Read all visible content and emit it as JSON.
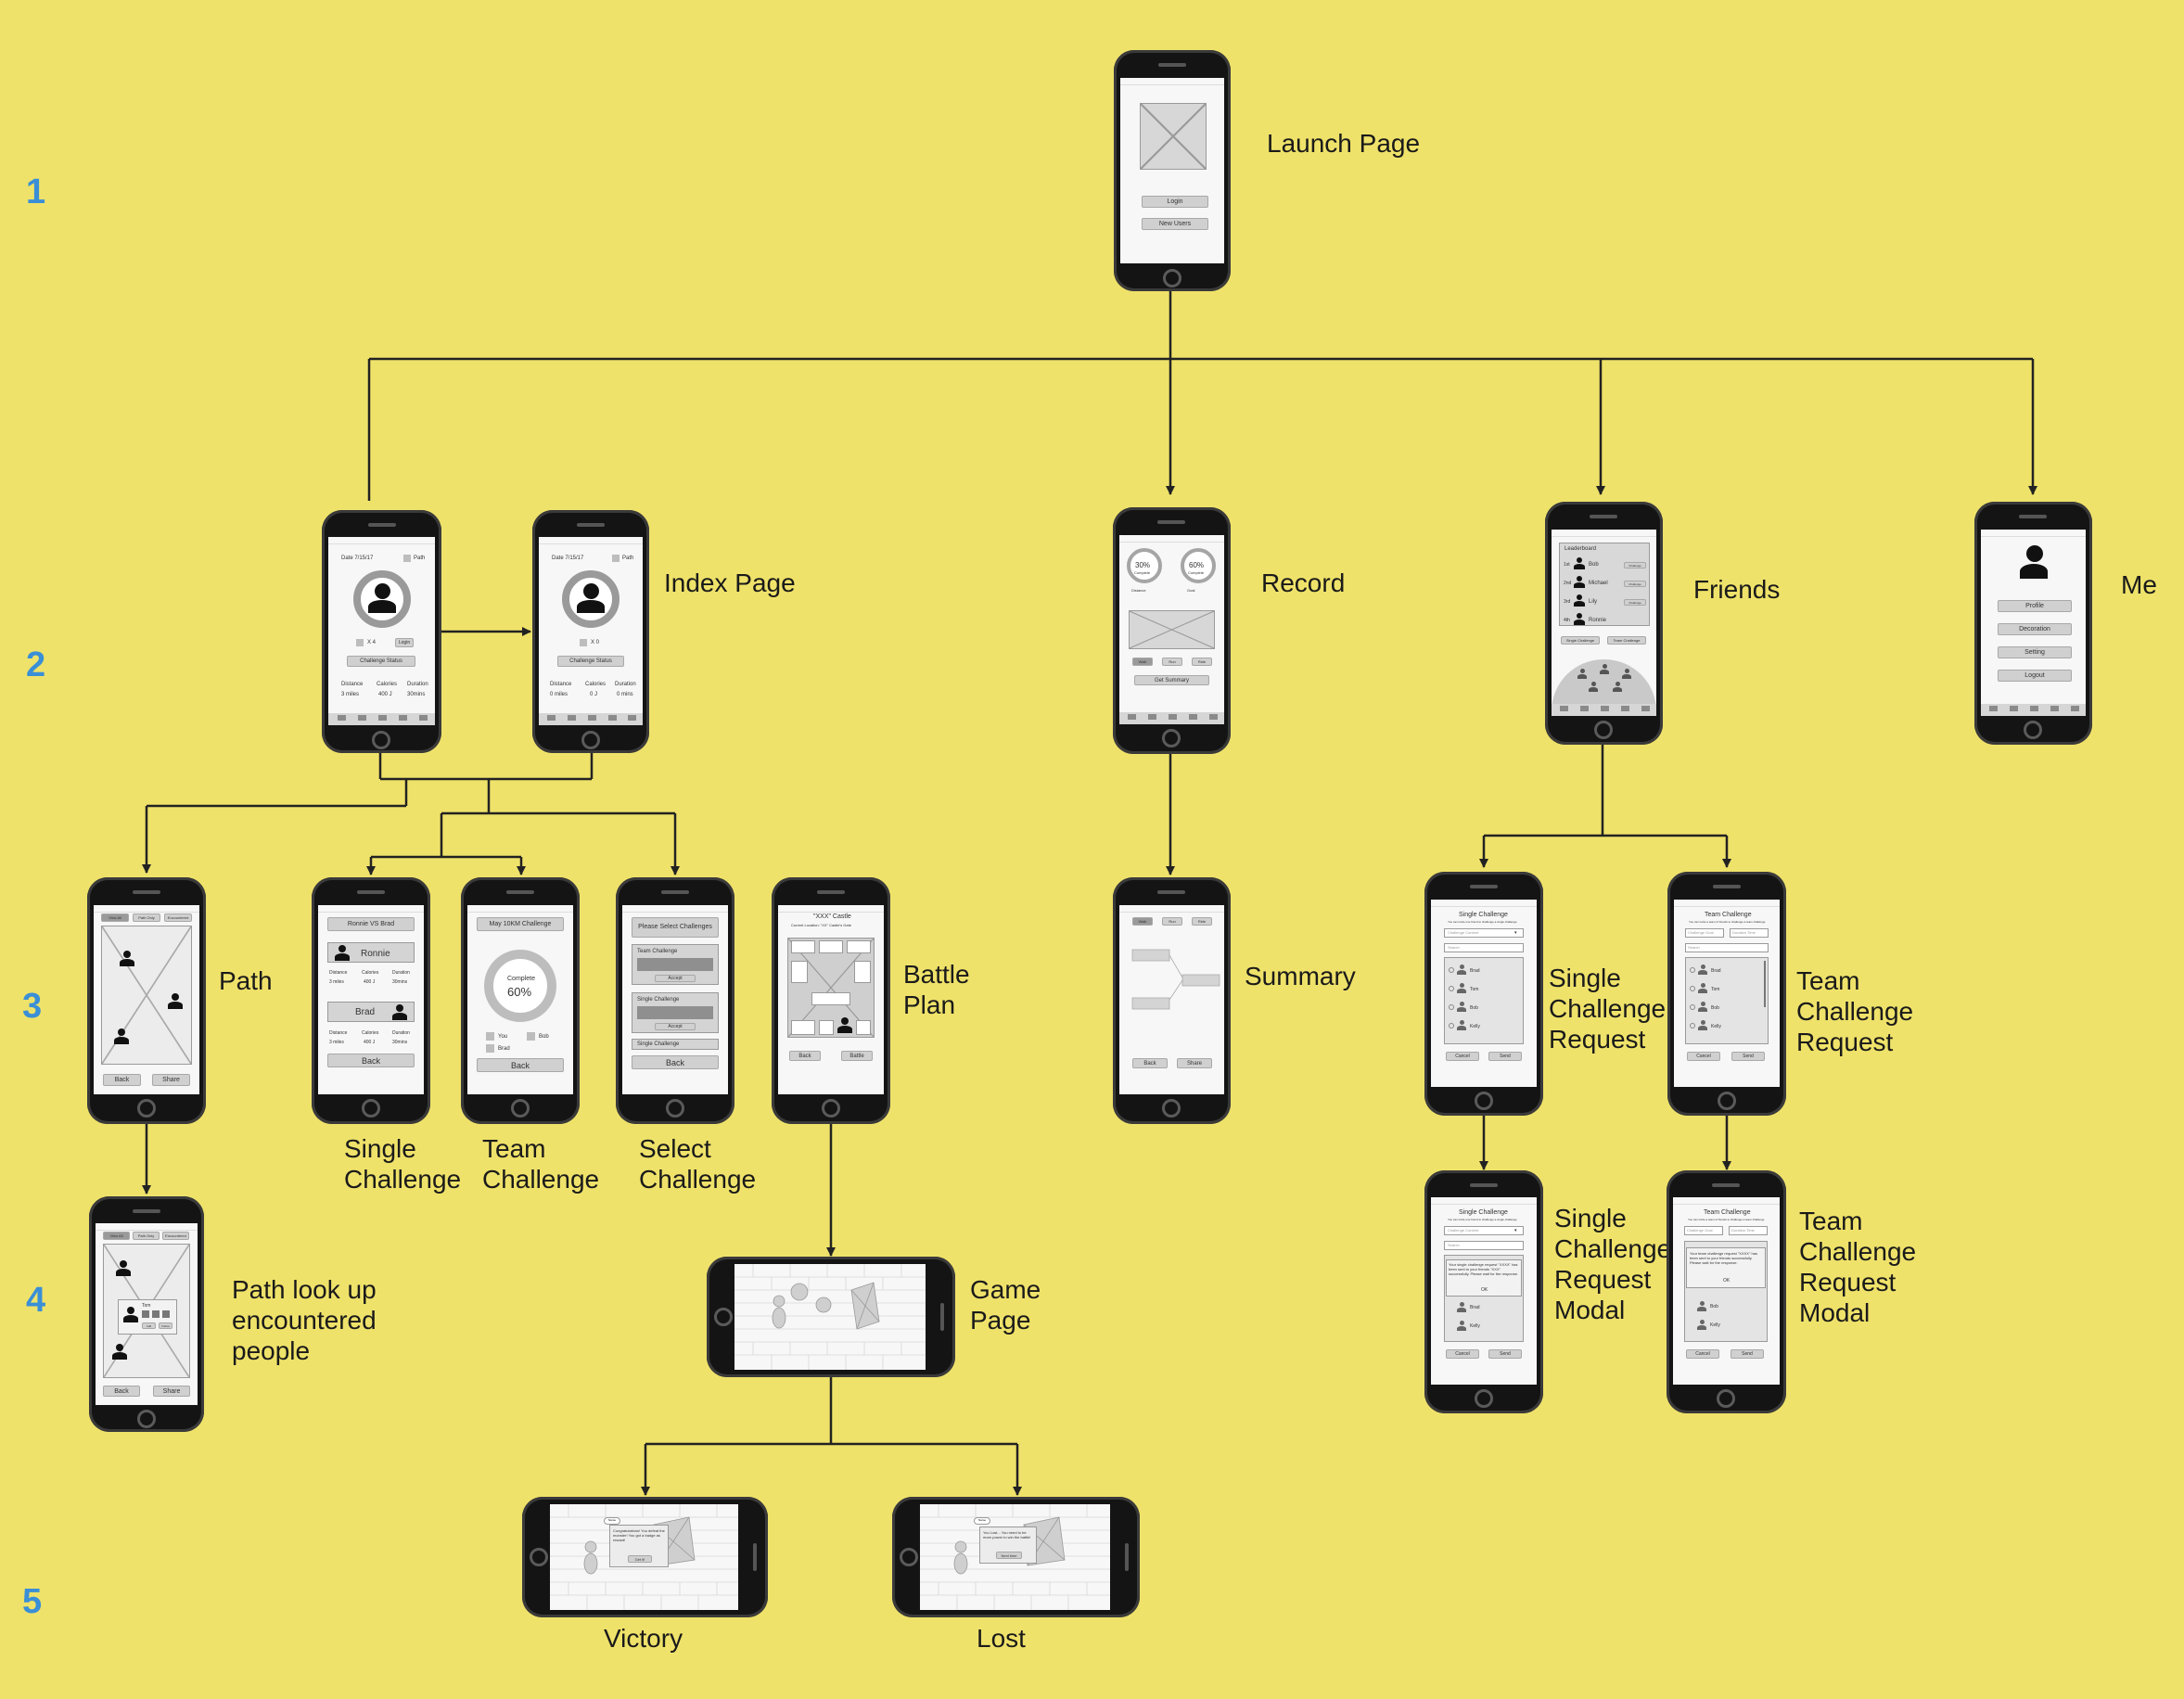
{
  "title": "",
  "row_numbers": [
    "1",
    "2",
    "3",
    "4",
    "5"
  ],
  "screens": {
    "launch": {
      "label": "Launch Page",
      "buttons": [
        "Login",
        "New Users"
      ]
    },
    "index": {
      "label": "Index Page",
      "date1": "Date 7/15/17",
      "date2": "Date 7/15/17",
      "path": "Path",
      "times1": "X 4",
      "times2": "X 0",
      "login": "Login",
      "challenge_status": "Challenge Status",
      "stat_labels": [
        "Distance",
        "Calories",
        "Duration"
      ],
      "stats1": [
        "3 miles",
        "400 J",
        "30mins"
      ],
      "stats2": [
        "0 miles",
        "0 J",
        "0 mins"
      ],
      "tabs": [
        "Index",
        "Record",
        "Friends",
        "Analysis",
        "Me"
      ]
    },
    "record": {
      "label": "Record",
      "goal1": "30%",
      "goal1_sub": "Complete",
      "goal2": "60%",
      "goal2_sub": "Complete",
      "captions": [
        "Distance",
        "Goal"
      ],
      "buttons": [
        "Walk",
        "Run",
        "Ride"
      ],
      "get_summary": "Get Summary"
    },
    "friends": {
      "label": "Friends",
      "leaderboard": "Leaderboard",
      "ranks": [
        "1st",
        "2nd",
        "3rd",
        "4th"
      ],
      "names": [
        "Bob",
        "Michael",
        "Lily",
        "Ronnie"
      ],
      "challenge": "Challenge",
      "buttons": [
        "Single Challenge",
        "Team Challenge"
      ]
    },
    "me": {
      "label": "Me",
      "buttons": [
        "Profile",
        "Decoration",
        "Setting",
        "Logout"
      ]
    },
    "path": {
      "label": "Path",
      "tabs": [
        "View All",
        "Path Only",
        "Encountered"
      ],
      "buttons": [
        "Back",
        "Share"
      ]
    },
    "single_challenge": {
      "label_lines": [
        "Single",
        "Challenge"
      ],
      "title": "Ronnie VS Brad",
      "p1": "Ronnie",
      "p2": "Brad",
      "stat_labels": [
        "Distance",
        "Calories",
        "Duration"
      ],
      "stats1": [
        "3 miles",
        "400 J",
        "30mins"
      ],
      "stats2": [
        "3 miles",
        "400 J",
        "30mins"
      ],
      "back": "Back"
    },
    "team_challenge": {
      "label_lines": [
        "Team",
        "Challenge"
      ],
      "title": "May 10KM Challenge",
      "complete": "Complete",
      "percent": "60%",
      "legend": [
        "You",
        "Bob",
        "Brad"
      ],
      "back": "Back"
    },
    "select_challenge": {
      "label_lines": [
        "Select",
        "Challenge"
      ],
      "title": "Please Select Challenges",
      "team": "Team Challenge",
      "single": "Single Challenge",
      "accept": "Accept",
      "back": "Back"
    },
    "battle_plan": {
      "label_lines": [
        "Battle",
        "Plan"
      ],
      "title": "\"XXX\" Castle",
      "sub": "Current Location: \"XX\" Castle's Gate",
      "buttons": [
        "Back",
        "Battle"
      ]
    },
    "summary": {
      "label": "Summary",
      "tabs": [
        "Walk",
        "Run",
        "Ride"
      ],
      "buttons": [
        "Back",
        "Share"
      ]
    },
    "single_request": {
      "label_lines": [
        "Single",
        "Challenge",
        "Request"
      ],
      "title": "Single Challenge",
      "sub": "You can invite one friend to challenge a single challenge",
      "dropdown": "Challenge Content",
      "search": "Search",
      "names": [
        "Brad",
        "Tom",
        "Bob",
        "Kelly"
      ],
      "buttons": [
        "Cancel",
        "Send"
      ]
    },
    "team_request": {
      "label_lines": [
        "Team",
        "Challenge",
        "Request"
      ],
      "title": "Team Challenge",
      "sub": "You can invite a team of friends to challenge a team challenge",
      "dropdowns": [
        "Challenge Goal",
        "Duration Time"
      ],
      "search": "Search",
      "names": [
        "Brad",
        "Tom",
        "Bob",
        "Kelly"
      ],
      "buttons": [
        "Cancel",
        "Send"
      ]
    },
    "path_lookup": {
      "label_lines": [
        "Path look up",
        "encountered",
        "people"
      ],
      "tabs": [
        "View All",
        "Path Only",
        "Encountered"
      ],
      "popup_name": "Tom",
      "popup_btns": [
        "Add",
        "Follow"
      ],
      "buttons": [
        "Back",
        "Share"
      ]
    },
    "game": {
      "label_lines": [
        "Game",
        "Page"
      ]
    },
    "single_modal": {
      "label_lines": [
        "Single",
        "Challenge",
        "Request",
        "Modal"
      ],
      "title": "Single Challenge",
      "sub": "You can invite one friend to challenge a single challenge",
      "dropdown": "Challenge Content",
      "search": "Search",
      "modal_text": "Your single challenge request \"XXXX\" has been sent to your friends \"XXX\" successfully. Please wait for the response.",
      "ok": "OK",
      "names": [
        "Brad",
        "Kelly"
      ],
      "buttons": [
        "Cancel",
        "Send"
      ]
    },
    "team_modal": {
      "label_lines": [
        "Team",
        "Challenge",
        "Request",
        "Modal"
      ],
      "title": "Team Challenge",
      "sub": "You can invite a team of friends to challenge a team challenge",
      "dropdowns": [
        "Challenge Goal",
        "Duration Time"
      ],
      "modal_text": "Your team challenge request \"XXXX\" has been sent to your friends successfully. Please wait for the response.",
      "ok": "OK",
      "names": [
        "Bob",
        "Kelly"
      ],
      "buttons": [
        "Cancel",
        "Send"
      ]
    },
    "victory": {
      "label": "Victory",
      "bubble": "Congratulations! You defeat the monster! You got a badge as reward!",
      "btn": "Get it!",
      "tag": "Name"
    },
    "lost": {
      "label": "Lost",
      "bubble": "You Lost... You need to be more power to win the battle!",
      "btn": "Next time",
      "tag": "Name"
    }
  }
}
